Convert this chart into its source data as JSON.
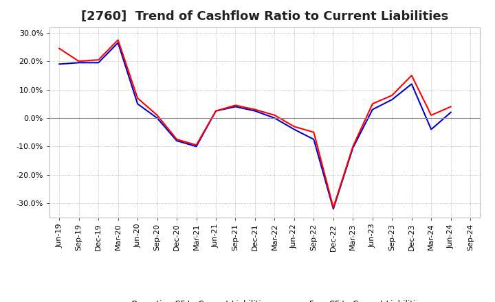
{
  "title": "[2760]  Trend of Cashflow Ratio to Current Liabilities",
  "x_labels": [
    "Jun-19",
    "Sep-19",
    "Dec-19",
    "Mar-20",
    "Jun-20",
    "Sep-20",
    "Dec-20",
    "Mar-21",
    "Jun-21",
    "Sep-21",
    "Dec-21",
    "Mar-22",
    "Jun-22",
    "Sep-22",
    "Dec-22",
    "Mar-23",
    "Jun-23",
    "Sep-23",
    "Dec-23",
    "Mar-24",
    "Jun-24",
    "Sep-24"
  ],
  "operating_cf": [
    24.5,
    20.0,
    20.5,
    27.5,
    7.0,
    1.0,
    -7.5,
    -9.5,
    2.5,
    4.5,
    3.0,
    1.0,
    -3.0,
    -5.0,
    -31.5,
    -10.0,
    5.0,
    8.0,
    15.0,
    1.0,
    4.0,
    null
  ],
  "free_cf": [
    19.0,
    19.5,
    19.5,
    26.5,
    5.0,
    0.0,
    -8.0,
    -10.0,
    2.5,
    4.0,
    2.5,
    0.0,
    -4.0,
    -7.5,
    -32.0,
    -10.5,
    3.0,
    6.5,
    12.0,
    -4.0,
    2.0,
    null
  ],
  "ylim": [
    -35,
    32
  ],
  "yticks": [
    -30.0,
    -20.0,
    -10.0,
    0.0,
    10.0,
    20.0,
    30.0
  ],
  "operating_color": "#ff0000",
  "free_color": "#0000cc",
  "background_color": "#ffffff",
  "grid_color": "#aaaaaa",
  "zero_line_color": "#888888",
  "title_fontsize": 13,
  "tick_fontsize": 8,
  "legend_labels": [
    "Operating CF to Current Liabilities",
    "Free CF to Current Liabilities"
  ]
}
